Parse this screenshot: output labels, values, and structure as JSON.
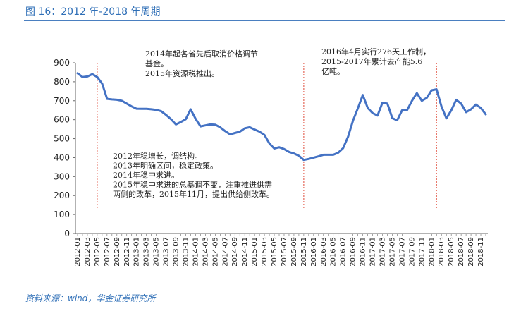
{
  "figure": {
    "title": "图 16：2012 年-2018 年周期",
    "source": "资料来源：wind，华金证券研究所"
  },
  "chart_data": {
    "type": "line",
    "title": "",
    "xlabel": "",
    "ylabel": "",
    "ylim": [
      0,
      900
    ],
    "yticks": [
      0,
      100,
      200,
      300,
      400,
      500,
      600,
      700,
      800,
      900
    ],
    "grid": false,
    "x_tick_labels": [
      "2012-01",
      "2012-03",
      "2012-05",
      "2012-07",
      "2012-09",
      "2012-11",
      "2013-01",
      "2013-03",
      "2013-05",
      "2013-07",
      "2013-09",
      "2013-11",
      "2014-01",
      "2014-03",
      "2014-05",
      "2014-07",
      "2014-09",
      "2014-11",
      "2015-01",
      "2015-03",
      "2015-05",
      "2015-07",
      "2015-09",
      "2015-11",
      "2016-01",
      "2016-03",
      "2016-05",
      "2016-07",
      "2016-09",
      "2016-11",
      "2017-01",
      "2017-03",
      "2017-05",
      "2017-07",
      "2017-09",
      "2017-11",
      "2018-01",
      "2018-03",
      "2018-05",
      "2018-07",
      "2018-09",
      "2018-11"
    ],
    "series": [
      {
        "color": "#4472c4",
        "x": [
          "2012-01",
          "2012-02",
          "2012-03",
          "2012-04",
          "2012-05",
          "2012-06",
          "2012-07",
          "2012-08",
          "2012-09",
          "2012-10",
          "2012-11",
          "2012-12",
          "2013-01",
          "2013-02",
          "2013-03",
          "2013-04",
          "2013-05",
          "2013-06",
          "2013-07",
          "2013-08",
          "2013-09",
          "2013-10",
          "2013-11",
          "2013-12",
          "2014-01",
          "2014-02",
          "2014-03",
          "2014-04",
          "2014-05",
          "2014-06",
          "2014-07",
          "2014-08",
          "2014-09",
          "2014-10",
          "2014-11",
          "2014-12",
          "2015-01",
          "2015-02",
          "2015-03",
          "2015-04",
          "2015-05",
          "2015-06",
          "2015-07",
          "2015-08",
          "2015-09",
          "2015-10",
          "2015-11",
          "2015-12",
          "2016-01",
          "2016-02",
          "2016-03",
          "2016-04",
          "2016-05",
          "2016-06",
          "2016-07",
          "2016-08",
          "2016-09",
          "2016-10",
          "2016-11",
          "2016-12",
          "2017-01",
          "2017-02",
          "2017-03",
          "2017-04",
          "2017-05",
          "2017-06",
          "2017-07",
          "2017-08",
          "2017-09",
          "2017-10",
          "2017-11",
          "2017-12",
          "2018-01",
          "2018-02",
          "2018-03",
          "2018-04",
          "2018-05",
          "2018-06",
          "2018-07",
          "2018-08",
          "2018-09",
          "2018-10",
          "2018-11",
          "2018-12"
        ],
        "values": [
          845,
          825,
          828,
          840,
          825,
          790,
          710,
          707,
          705,
          700,
          685,
          670,
          658,
          657,
          657,
          655,
          652,
          645,
          625,
          603,
          575,
          588,
          603,
          655,
          605,
          565,
          570,
          575,
          574,
          560,
          540,
          523,
          530,
          537,
          555,
          560,
          548,
          537,
          520,
          475,
          448,
          455,
          445,
          430,
          422,
          410,
          388,
          393,
          400,
          407,
          415,
          415,
          415,
          426,
          450,
          510,
          595,
          660,
          730,
          662,
          635,
          622,
          690,
          685,
          608,
          597,
          650,
          650,
          700,
          740,
          700,
          715,
          755,
          760,
          670,
          607,
          650,
          705,
          685,
          640,
          655,
          680,
          662,
          628
        ]
      }
    ],
    "vlines": [
      "2012-05",
      "2015-11",
      "2018-02"
    ],
    "annotations": [
      {
        "lines": [
          "2014年起各省先后取消价格调节",
          "基金。",
          "2015年资源税推出。"
        ]
      },
      {
        "lines": [
          "2016年4月实行276天工作制，",
          "2015-2017年累计去产能5.6",
          "亿吨。"
        ]
      },
      {
        "lines": [
          "2012年稳增长，调结构。",
          "2013年明确区间，稳定政策。",
          "2014年稳中求进。",
          "2015年稳中求进的总基调不变，注重推进供需",
          "两侧的改革，2015年11月，提出供给侧改革。"
        ]
      }
    ]
  }
}
